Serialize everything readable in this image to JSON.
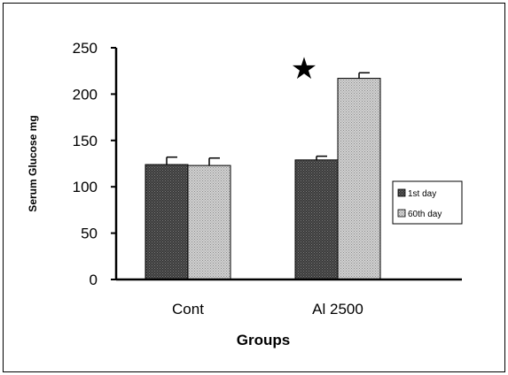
{
  "chart_data": {
    "type": "bar",
    "title": "",
    "xlabel": "Groups",
    "ylabel": "Serum Glucose mg",
    "ylim": [
      0,
      250
    ],
    "yticks": [
      "0",
      "50",
      "100",
      "150",
      "200",
      "250"
    ],
    "categories": [
      "Cont",
      "Al 2500"
    ],
    "series": [
      {
        "name": "1st day",
        "values": [
          124,
          129
        ],
        "errors": [
          8,
          4
        ],
        "pattern": "dark-dots"
      },
      {
        "name": "60th day",
        "values": [
          123,
          217
        ],
        "errors": [
          8,
          6
        ],
        "pattern": "light-dots"
      }
    ],
    "grid": false,
    "legend": "right",
    "annotations": [
      {
        "symbol": "★",
        "category": "Al 2500",
        "y": 228
      }
    ]
  }
}
